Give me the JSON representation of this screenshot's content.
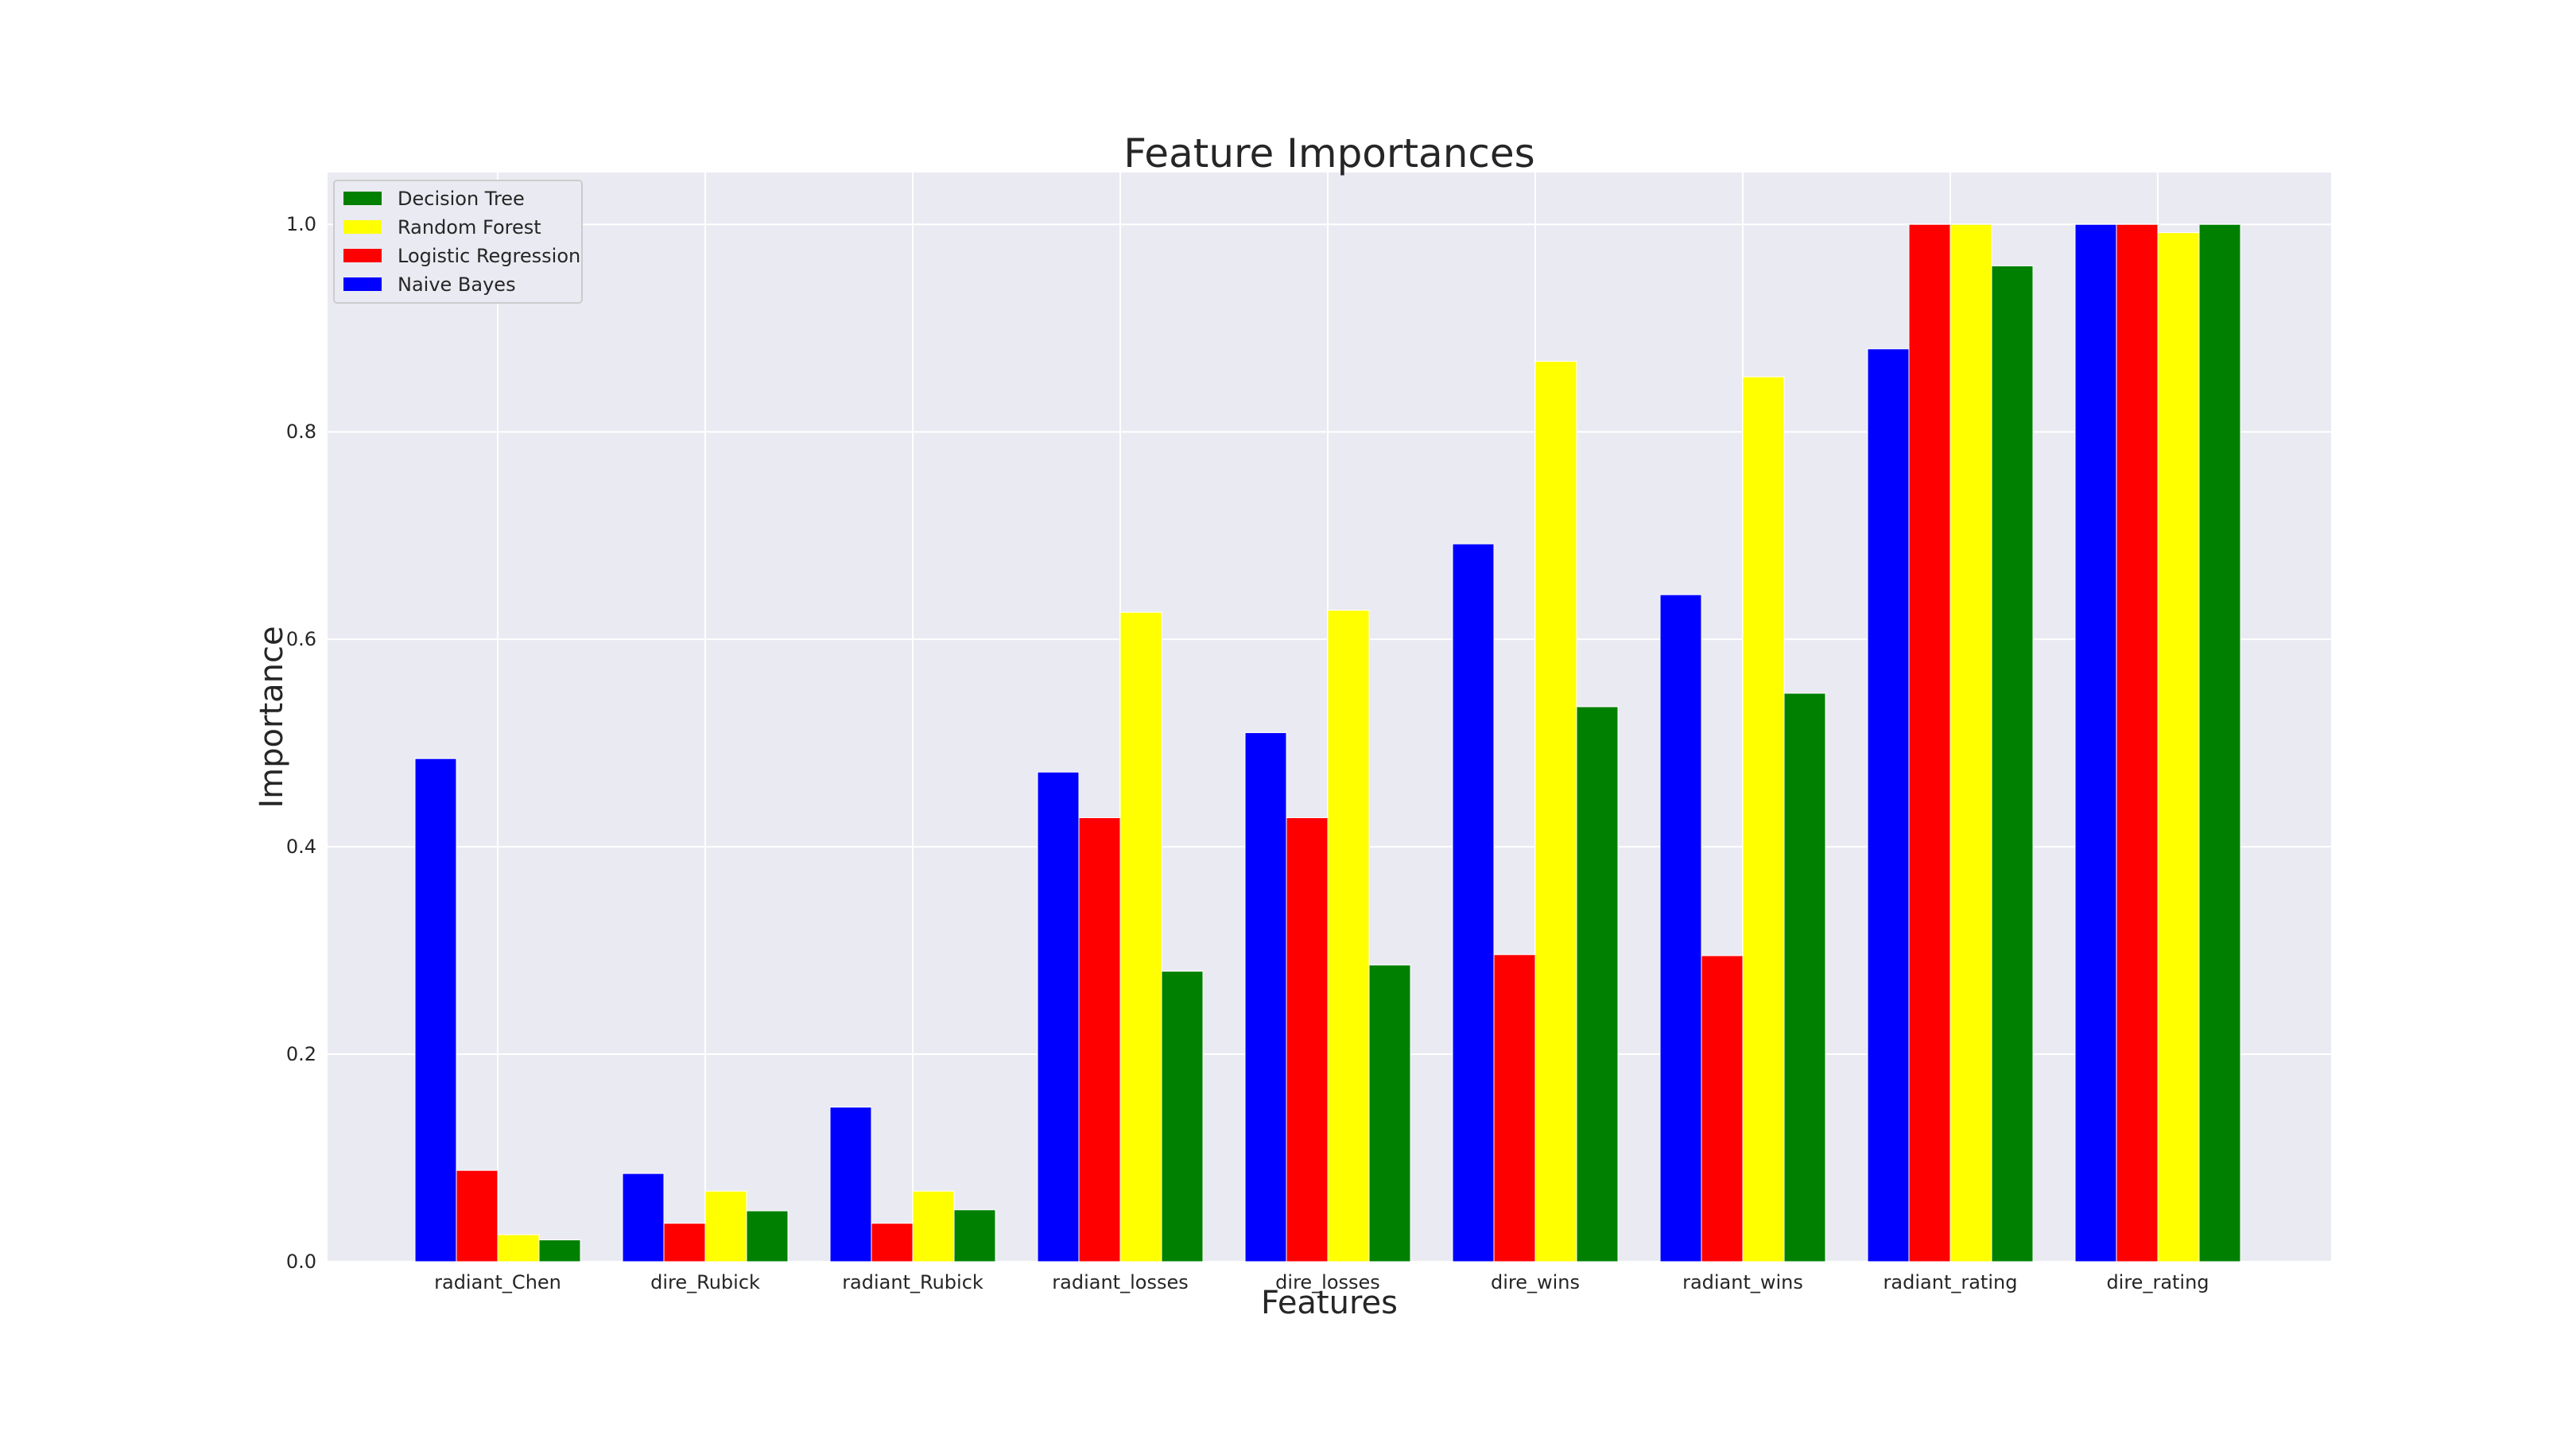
{
  "chart_data": {
    "type": "bar",
    "title": "Feature Importances",
    "xlabel": "Features",
    "ylabel": "Importance",
    "ylim": [
      0,
      1.05
    ],
    "yticks": [
      "0.0",
      "0.2",
      "0.4",
      "0.6",
      "0.8",
      "1.0"
    ],
    "grid": true,
    "legend_position": "top-left",
    "categories": [
      "radiant_Chen",
      "dire_Rubick",
      "radiant_Rubick",
      "radiant_losses",
      "dire_losses",
      "dire_wins",
      "radiant_wins",
      "radiant_rating",
      "dire_rating"
    ],
    "series": [
      {
        "name": "Naive Bayes",
        "color": "#0000ff",
        "values": [
          0.485,
          0.085,
          0.149,
          0.472,
          0.51,
          0.692,
          0.643,
          0.88,
          1.0
        ]
      },
      {
        "name": "Logistic Regression",
        "color": "#ff0000",
        "values": [
          0.088,
          0.037,
          0.037,
          0.428,
          0.428,
          0.296,
          0.295,
          1.0,
          1.0
        ]
      },
      {
        "name": "Random Forest",
        "color": "#ffff00",
        "values": [
          0.026,
          0.068,
          0.068,
          0.626,
          0.628,
          0.868,
          0.853,
          1.0,
          0.992
        ]
      },
      {
        "name": "Decision Tree",
        "color": "#008000",
        "values": [
          0.021,
          0.049,
          0.05,
          0.28,
          0.286,
          0.535,
          0.548,
          0.96,
          1.0
        ]
      }
    ],
    "legend_order": [
      "Decision Tree",
      "Random Forest",
      "Logistic Regression",
      "Naive Bayes"
    ],
    "background": "#eaeaf2"
  }
}
